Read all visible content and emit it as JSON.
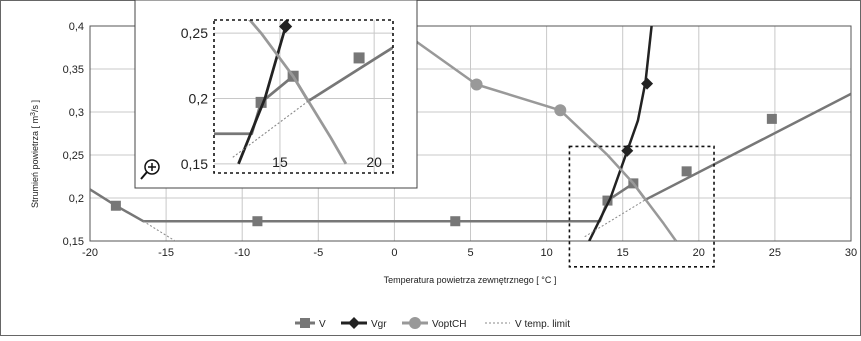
{
  "chart_data": {
    "type": "line",
    "title": "",
    "xlabel": "Temperatura powietrza zewnętrznego [ °C ]",
    "ylabel_parts": [
      "Strumień powietrza [ m",
      "3",
      "/s ]"
    ],
    "xlim": [
      -20,
      30
    ],
    "ylim": [
      0.15,
      0.4
    ],
    "x_ticks": [
      -20,
      -15,
      -10,
      -5,
      0,
      5,
      10,
      15,
      20,
      25,
      30
    ],
    "y_ticks": [
      0.15,
      0.2,
      0.25,
      0.3,
      0.35,
      0.4
    ],
    "x_tick_labels": [
      "-20",
      "-15",
      "-10",
      "-5",
      "0",
      "5",
      "10",
      "15",
      "20",
      "25",
      "30"
    ],
    "y_tick_labels": [
      "0,15",
      "0,2",
      "0,25",
      "0,3",
      "0,35",
      "0,4"
    ],
    "grid": true,
    "legend_position": "bottom",
    "series": [
      {
        "name": "V",
        "color": "#777777",
        "marker": "square",
        "line": [
          [
            -20,
            0.21
          ],
          [
            -18.3,
            0.191
          ],
          [
            -16.5,
            0.173
          ],
          [
            13.5,
            0.173
          ],
          [
            14,
            0.197
          ],
          [
            15.7,
            0.217
          ],
          [
            16.5,
            0.198
          ],
          [
            30,
            0.321
          ]
        ],
        "markers": [
          [
            -18.3,
            0.191
          ],
          [
            -9,
            0.173
          ],
          [
            4,
            0.173
          ],
          [
            14,
            0.197
          ],
          [
            15.7,
            0.217
          ],
          [
            19.2,
            0.231
          ],
          [
            24.8,
            0.292
          ]
        ]
      },
      {
        "name": "Vgr",
        "color": "#222222",
        "marker": "diamond",
        "line": [
          [
            12.8,
            0.15
          ],
          [
            14.2,
            0.2
          ],
          [
            15.3,
            0.255
          ],
          [
            16,
            0.29
          ],
          [
            16.5,
            0.335
          ],
          [
            16.9,
            0.4
          ]
        ],
        "markers": [
          [
            15.3,
            0.255
          ],
          [
            16.6,
            0.333
          ]
        ]
      },
      {
        "name": "VoptCH",
        "color": "#999999",
        "marker": "circle",
        "line": [
          [
            0,
            0.4
          ],
          [
            5.4,
            0.332
          ],
          [
            10.9,
            0.302
          ],
          [
            14,
            0.25
          ],
          [
            15.7,
            0.217
          ],
          [
            17.7,
            0.17
          ],
          [
            18.5,
            0.15
          ]
        ],
        "markers": [
          [
            5.4,
            0.332
          ],
          [
            10.9,
            0.302
          ]
        ]
      },
      {
        "name": "V temp. limit",
        "color": "#888888",
        "marker": "none",
        "dashed": true,
        "line": [
          [
            -16.5,
            0.173
          ],
          [
            -14.4,
            0.15
          ]
        ],
        "line2": [
          [
            12.5,
            0.155
          ],
          [
            16.5,
            0.198
          ]
        ]
      }
    ],
    "inset": {
      "xlim": [
        11.5,
        21
      ],
      "ylim": [
        0.15,
        0.26
      ],
      "x_ticks": [
        15,
        20
      ],
      "y_ticks": [
        0.15,
        0.2,
        0.25
      ],
      "x_tick_labels": [
        "15",
        "20"
      ],
      "y_tick_labels": [
        "0,15",
        "0,2",
        "0,25"
      ],
      "zoom_icon": "zoom-in-magnifier-icon"
    }
  }
}
